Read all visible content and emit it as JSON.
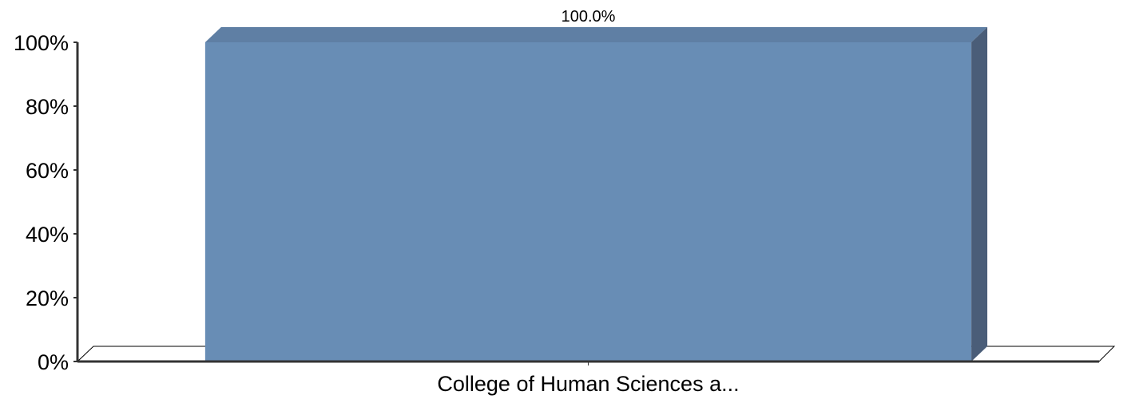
{
  "chart_data": {
    "type": "bar",
    "categories": [
      "College of Human Sciences a..."
    ],
    "values": [
      100.0
    ],
    "data_labels": [
      "100.0%"
    ],
    "y_ticks": [
      "0%",
      "20%",
      "40%",
      "60%",
      "80%",
      "100%"
    ],
    "ylim": [
      0,
      100
    ],
    "grid": false,
    "legend": "none",
    "style": "3d",
    "colors": {
      "bar_front": "#688db5",
      "bar_top": "#5f7fa4",
      "bar_side": "#4a5d78",
      "axis": "#333333",
      "text": "#000000"
    }
  }
}
